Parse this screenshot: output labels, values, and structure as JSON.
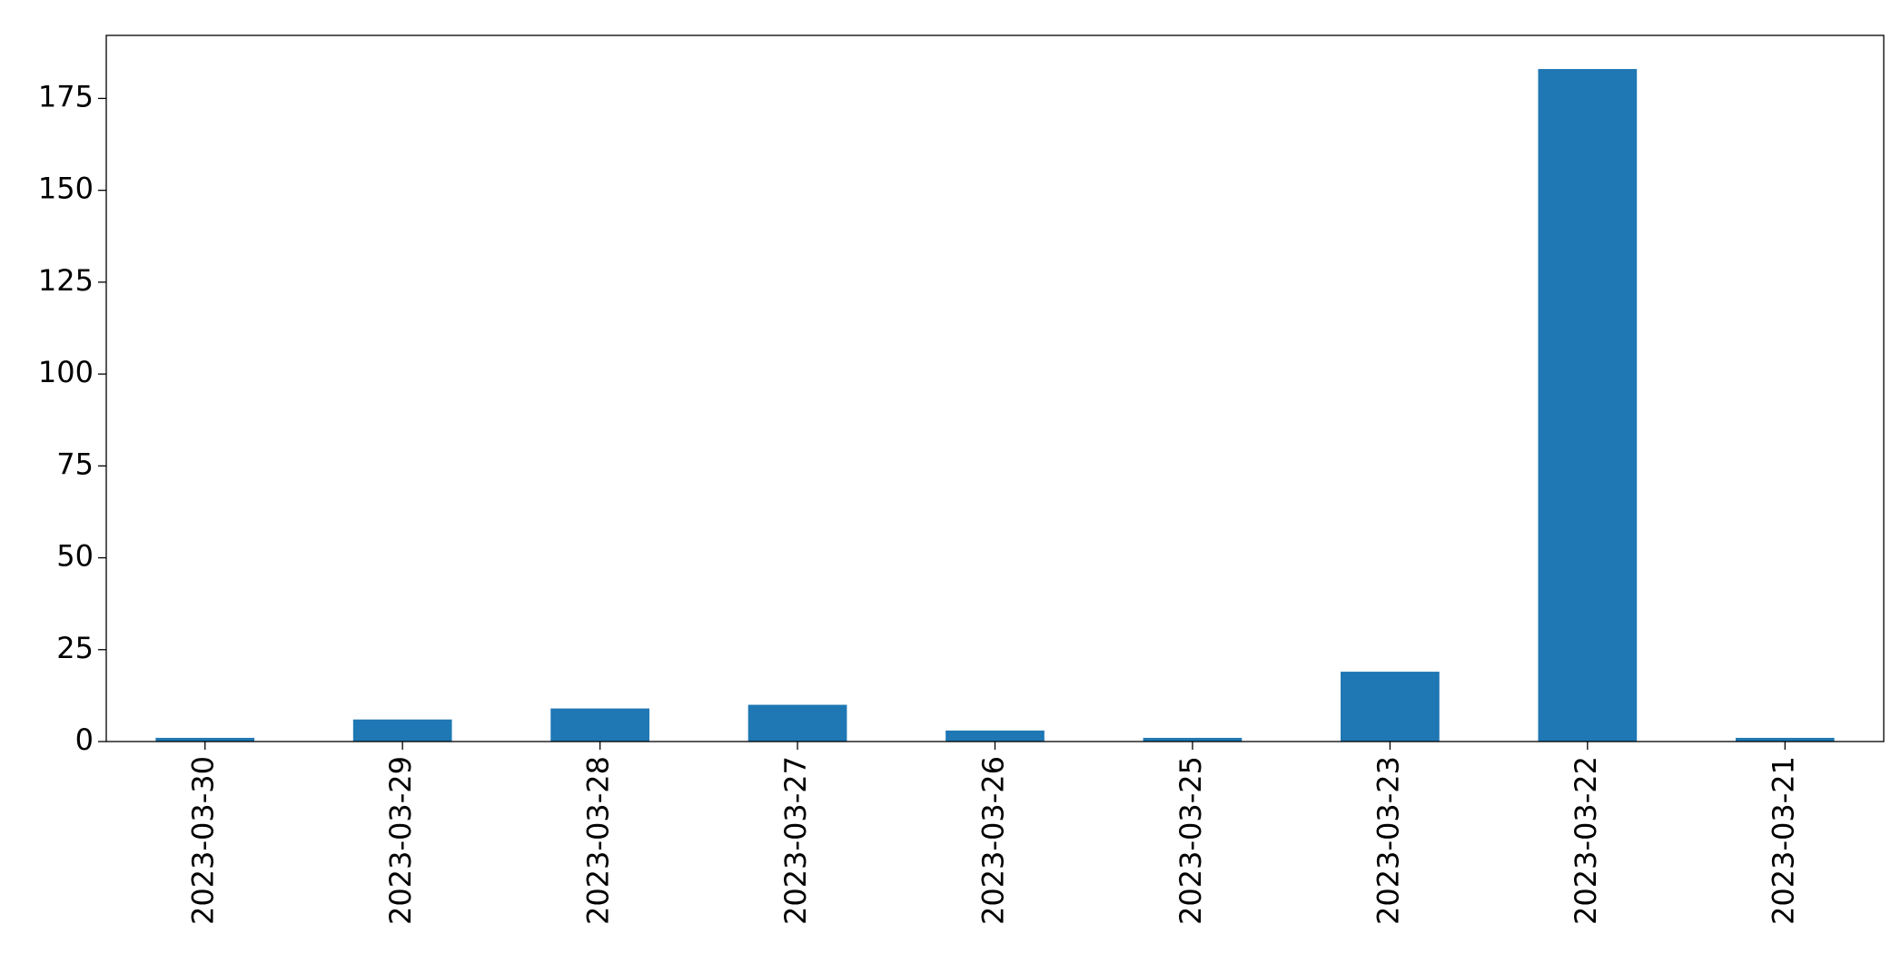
{
  "chart_data": {
    "type": "bar",
    "categories": [
      "2023-03-30",
      "2023-03-29",
      "2023-03-28",
      "2023-03-27",
      "2023-03-26",
      "2023-03-25",
      "2023-03-23",
      "2023-03-22",
      "2023-03-21"
    ],
    "values": [
      1,
      6,
      9,
      10,
      3,
      1,
      19,
      183,
      1
    ],
    "color": "#1f77b4",
    "ylim": [
      0,
      192.15
    ],
    "yticks": [
      0,
      25,
      50,
      75,
      100,
      125,
      150,
      175
    ],
    "grid": false
  }
}
